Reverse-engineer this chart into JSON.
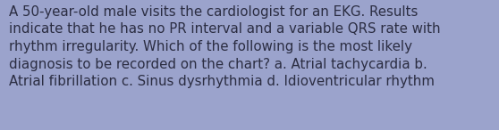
{
  "text": "A 50-year-old male visits the cardiologist for an EKG. Results\nindicate that he has no PR interval and a variable QRS rate with\nrhythm irregularity. Which of the following is the most likely\ndiagnosis to be recorded on the chart? a. Atrial tachycardia b.\nAtrial fibrillation c. Sinus dysrhythmia d. Idioventricular rhythm",
  "background_color": "#9ba3cc",
  "text_color": "#2b2d42",
  "font_size": 10.8,
  "fig_width": 5.58,
  "fig_height": 1.46,
  "dpi": 100
}
